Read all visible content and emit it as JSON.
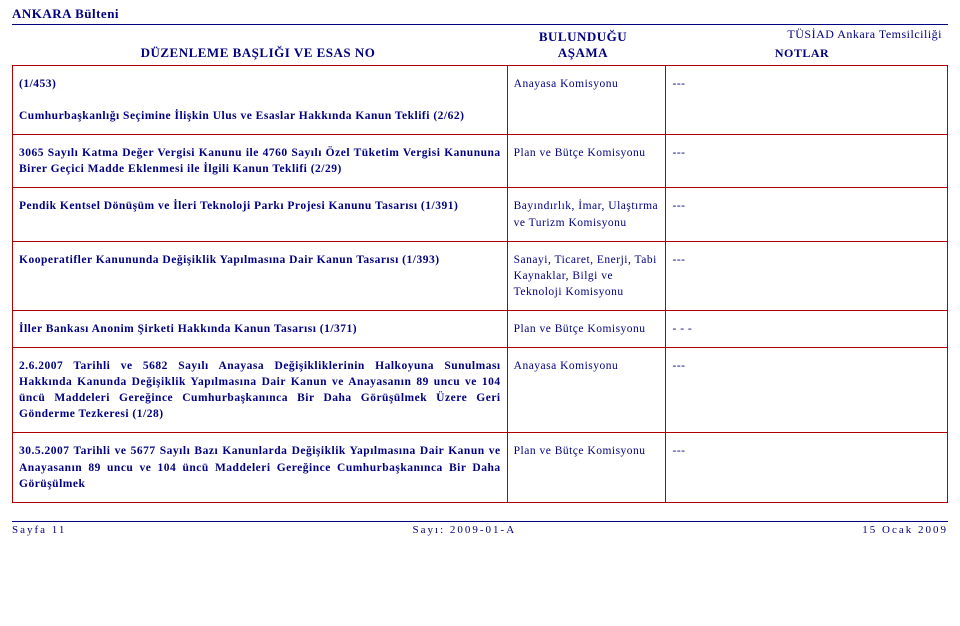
{
  "header": {
    "bulletin": "ANKARA Bülteni",
    "col1_title": "DÜZENLEME BAŞLIĞI VE ESAS NO",
    "col2_title_line1": "BULUNDUĞU",
    "col2_title_line2": "AŞAMA",
    "right_org": "TÜSİAD Ankara Temsilciliği",
    "notes_title": "NOTLAR"
  },
  "rows": [
    {
      "title": "(1/453)\n\nCumhurbaşkanlığı Seçimine İlişkin Ulus ve Esaslar Hakkında Kanun Teklifi (2/62)",
      "stage": "Anayasa Komisyonu",
      "notes": "---"
    },
    {
      "title": "3065 Sayılı Katma Değer Vergisi Kanunu ile 4760 Sayılı Özel Tüketim Vergisi Kanununa Birer Geçici Madde Eklenmesi ile İlgili Kanun Teklifi (2/29)",
      "stage": "Plan ve Bütçe Komisyonu",
      "notes": "---"
    },
    {
      "title": "Pendik Kentsel Dönüşüm ve İleri Teknoloji Parkı Projesi Kanunu Tasarısı (1/391)",
      "stage": "Bayındırlık, İmar, Ulaştırma ve Turizm Komisyonu",
      "notes": "---"
    },
    {
      "title": "Kooperatifler Kanununda Değişiklik Yapılmasına Dair Kanun Tasarısı (1/393)",
      "stage": "Sanayi, Ticaret, Enerji, Tabi Kaynaklar, Bilgi ve Teknoloji Komisyonu",
      "notes": "---"
    },
    {
      "title": "İller Bankası Anonim Şirketi Hakkında Kanun Tasarısı (1/371)",
      "stage": "Plan ve Bütçe Komisyonu",
      "notes": "- - -"
    },
    {
      "title": "2.6.2007 Tarihli ve 5682 Sayılı Anayasa Değişikliklerinin Halkoyuna Sunulması Hakkında Kanunda Değişiklik Yapılmasına Dair Kanun ve Anayasanın 89 uncu ve 104 üncü Maddeleri Gereğince Cumhurbaşkanınca Bir Daha Görüşülmek Üzere Geri Gönderme Tezkeresi (1/28)",
      "stage": "Anayasa Komisyonu",
      "notes": "---"
    },
    {
      "title": "30.5.2007 Tarihli ve 5677 Sayılı Bazı Kanunlarda Değişiklik Yapılmasına Dair Kanun ve Anayasanın 89 uncu ve 104 üncü Maddeleri Gereğince Cumhurbaşkanınca Bir Daha Görüşülmek",
      "stage": "Plan ve Bütçe Komisyonu",
      "notes": "---"
    }
  ],
  "footer": {
    "page": "Sayfa 11",
    "issue": "Sayı: 2009-01-A",
    "date": "15 Ocak 2009"
  },
  "colors": {
    "text": "#000080",
    "table_border": "#b00000",
    "background": "#ffffff"
  }
}
